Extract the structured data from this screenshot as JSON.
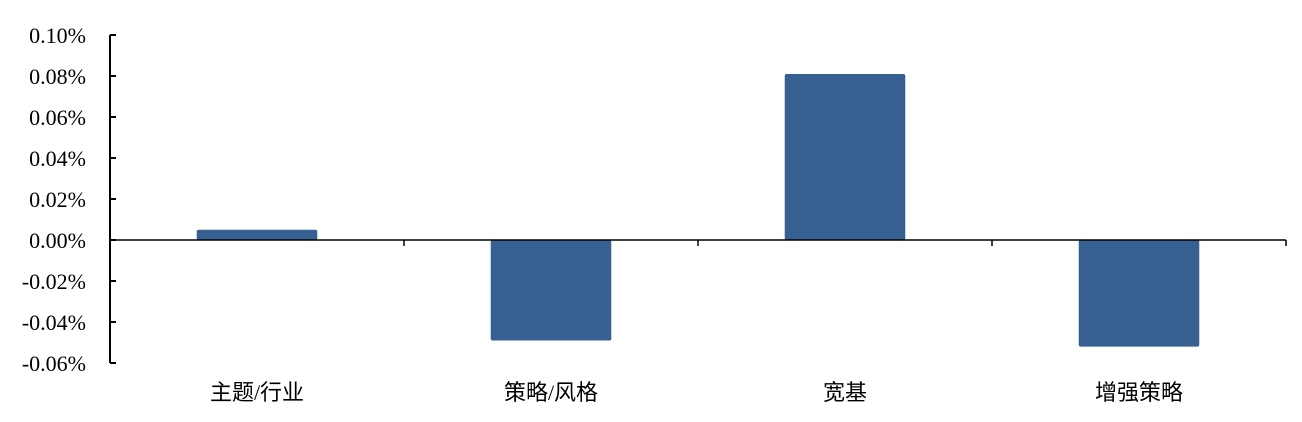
{
  "chart_data": {
    "type": "bar",
    "title": "",
    "xlabel": "",
    "ylabel": "",
    "categories": [
      "主题/行业",
      "策略/风格",
      "宽基",
      "增强策略"
    ],
    "values": [
      0.005,
      -0.049,
      0.081,
      -0.052
    ],
    "unit": "%",
    "ylim": [
      -0.06,
      0.1
    ],
    "yticks": [
      "0.10%",
      "0.08%",
      "0.06%",
      "0.04%",
      "0.02%",
      "0.00%",
      "-0.02%",
      "-0.04%",
      "-0.06%"
    ],
    "ytick_values": [
      0.1,
      0.08,
      0.06,
      0.04,
      0.02,
      0.0,
      -0.02,
      -0.04,
      -0.06
    ],
    "grid": false,
    "legend": "none",
    "bar_color": "#366092"
  }
}
